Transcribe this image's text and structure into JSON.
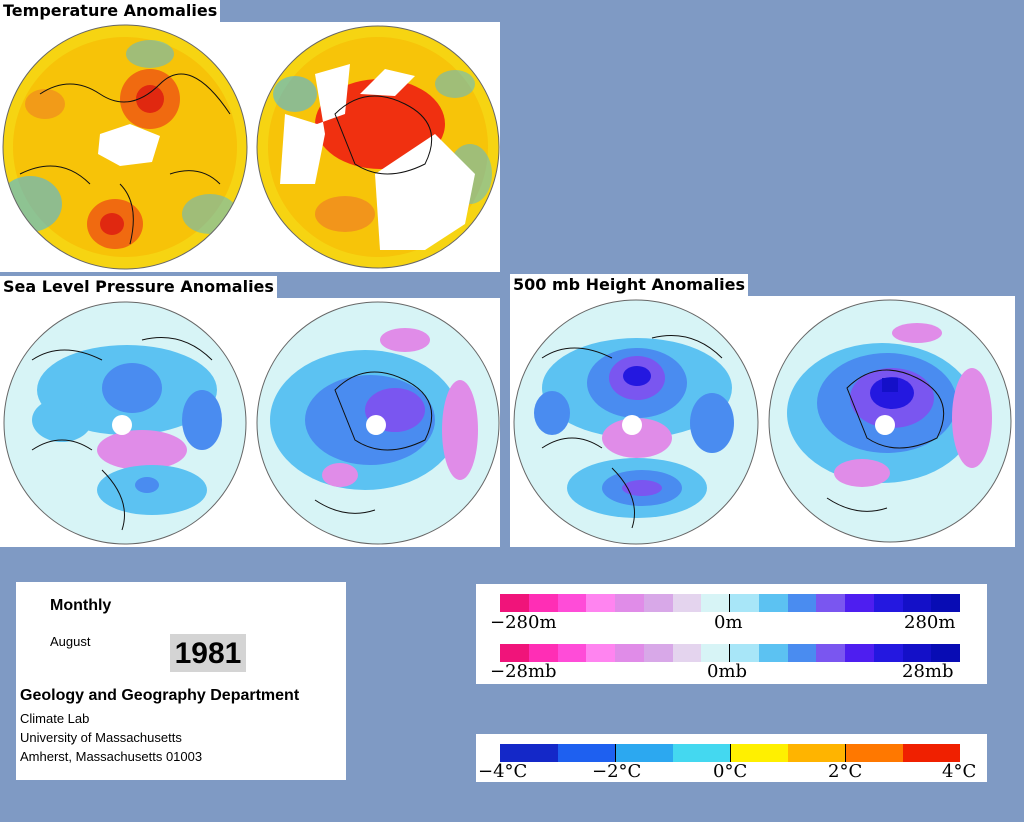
{
  "temperature": {
    "title": "Temperature Anomalies"
  },
  "slp": {
    "title": "Sea Level Pressure Anomalies"
  },
  "height500": {
    "title": "500 mb Height Anomalies"
  },
  "info": {
    "period": "Monthly",
    "month": "August",
    "year": "1981",
    "department": "Geology and Geography Department",
    "lab": "Climate Lab",
    "university": "University of Massachusetts",
    "address": "Amherst, Massachusetts 01003"
  },
  "height_scale": {
    "colors": [
      "#f0147a",
      "#ff2eb5",
      "#ff4cd8",
      "#ff84f0",
      "#e08ce8",
      "#d8a8e8",
      "#e4d4ee",
      "#d7f4f6",
      "#a8e6f8",
      "#5cc2f2",
      "#4a8cf0",
      "#7a56f0",
      "#4e1ef0",
      "#2418e0",
      "#1410c8",
      "#080cb4"
    ],
    "min_label": "−280m",
    "mid_label": "0m",
    "max_label": "280m"
  },
  "pressure_scale": {
    "colors": [
      "#f0147a",
      "#ff2eb5",
      "#ff4cd8",
      "#ff84f0",
      "#e08ce8",
      "#d8a8e8",
      "#e4d4ee",
      "#d7f4f6",
      "#a8e6f8",
      "#5cc2f2",
      "#4a8cf0",
      "#7a56f0",
      "#4e1ef0",
      "#2418e0",
      "#1410c8",
      "#080cb4"
    ],
    "min_label": "−28mb",
    "mid_label": "0mb",
    "max_label": "28mb"
  },
  "temp_scale": {
    "colors": [
      "#1428c8",
      "#1e60f0",
      "#2ca8f0",
      "#44d8f0",
      "#fff000",
      "#ffb400",
      "#ff7800",
      "#f02000"
    ],
    "labels": [
      "−4°C",
      "−2°C",
      "0°C",
      "2°C",
      "4°C"
    ]
  }
}
